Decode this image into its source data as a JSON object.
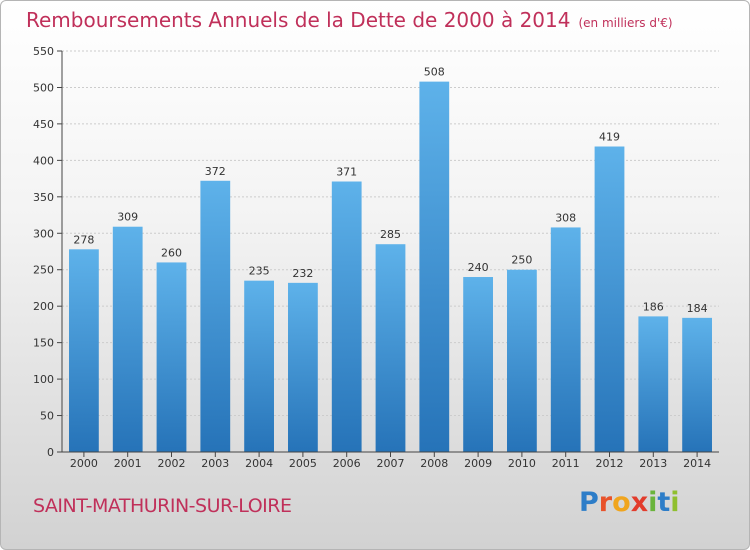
{
  "header": {
    "title": "Remboursements Annuels de la Dette de 2000 à 2014",
    "unit": "(en milliers d'€)"
  },
  "footer": {
    "commune": "SAINT-MATHURIN-SUR-LOIRE",
    "brand": "Proxiti",
    "brand_letters": [
      "P",
      "r",
      "o",
      "x",
      "i",
      "t",
      "i"
    ]
  },
  "colors": {
    "title": "#c0305a",
    "bar_top": "#5eb2ea",
    "bar_bottom": "#2673b8",
    "axis": "#444444",
    "grid": "#cccccc"
  },
  "chart_data": {
    "type": "bar",
    "title": "Remboursements Annuels de la Dette de 2000 à 2014",
    "subtitle": "(en milliers d'€)",
    "xlabel": "",
    "ylabel": "",
    "categories": [
      "2000",
      "2001",
      "2002",
      "2003",
      "2004",
      "2005",
      "2006",
      "2007",
      "2008",
      "2009",
      "2010",
      "2011",
      "2012",
      "2013",
      "2014"
    ],
    "values": [
      278,
      309,
      260,
      372,
      235,
      232,
      371,
      285,
      508,
      240,
      250,
      308,
      419,
      186,
      184
    ],
    "ylim": [
      0,
      550
    ],
    "yticks": [
      0,
      50,
      100,
      150,
      200,
      250,
      300,
      350,
      400,
      450,
      500,
      550
    ],
    "grid": true,
    "legend": "none"
  }
}
